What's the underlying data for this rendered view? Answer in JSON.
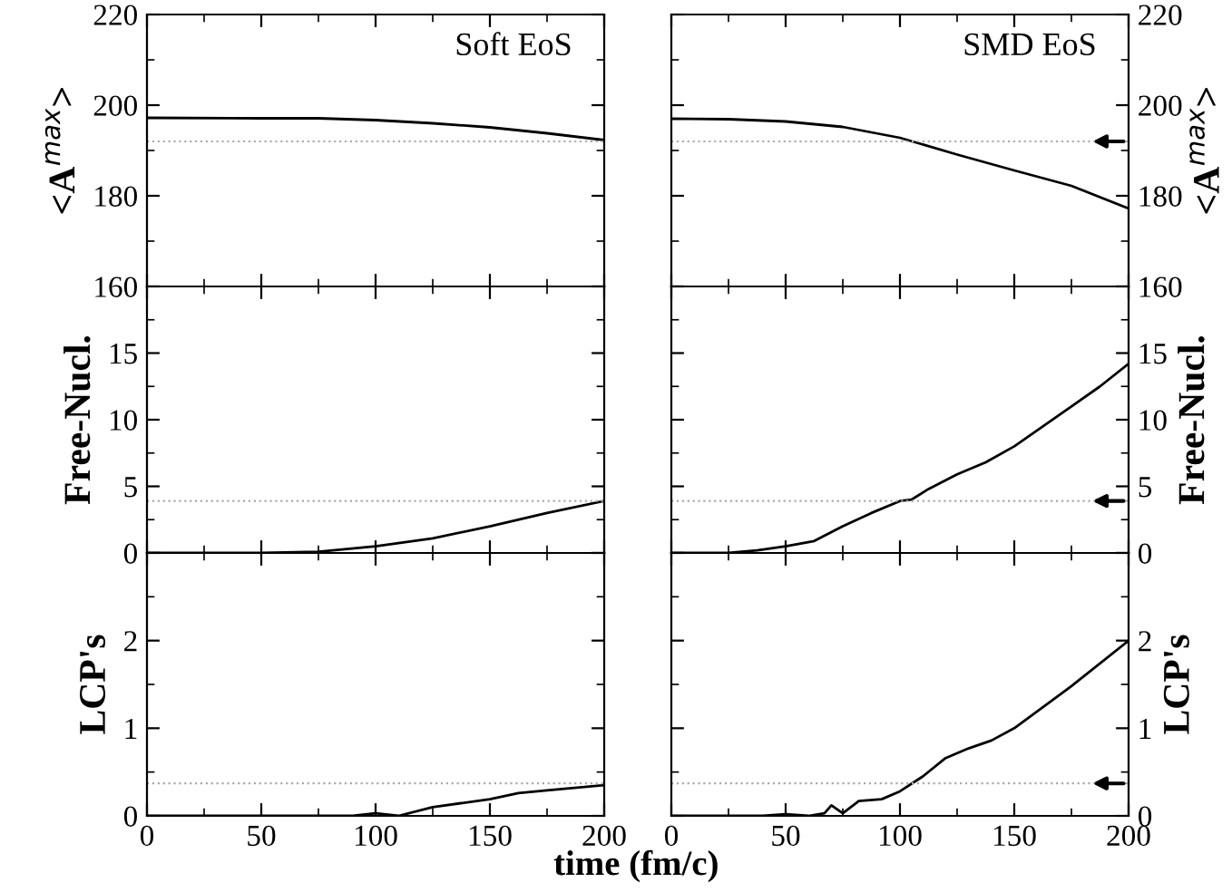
{
  "chart_data": [
    {
      "type": "line",
      "ylabel": "<A$^{max}$>",
      "annotations": [
        "Soft EoS"
      ],
      "x": [
        0,
        50,
        75,
        100,
        125,
        150,
        175,
        200
      ],
      "series": [
        {
          "color": "#000000",
          "values": [
            197.2,
            197.1,
            197.1,
            196.7,
            196.0,
            195.1,
            193.8,
            192.3
          ]
        }
      ],
      "xlim": [
        0,
        200
      ],
      "xticks": [
        0,
        50,
        100,
        150,
        200
      ],
      "ylim": [
        160,
        220
      ],
      "yticks": [
        160,
        180,
        200,
        220
      ],
      "ref_lines": [
        {
          "axis": "y",
          "value": 192,
          "color": "#aaaaaa",
          "line_style": "dotted"
        }
      ],
      "tick_labels": "y",
      "grid": false,
      "legend": false
    },
    {
      "type": "line",
      "y2label": "<A$^{max}$>",
      "annotations": [
        "SMD EoS"
      ],
      "x": [
        0,
        25,
        50,
        75,
        100,
        125,
        150,
        175,
        200
      ],
      "series": [
        {
          "color": "#000000",
          "axis": "y2",
          "values": [
            197.0,
            196.9,
            196.4,
            195.2,
            192.8,
            189.1,
            185.6,
            182.2,
            177.2
          ]
        }
      ],
      "xlim": [
        0,
        200
      ],
      "xticks": [
        0,
        50,
        100,
        150,
        200
      ],
      "y2lim": [
        160,
        220
      ],
      "y2ticks": [
        160,
        180,
        200,
        220
      ],
      "ref_lines": [
        {
          "axis": "y2",
          "value": 192,
          "color": "#aaaaaa",
          "line_style": "dotted"
        }
      ],
      "tick_labels": "y",
      "grid": false,
      "legend": false
    },
    {
      "type": "line",
      "ylabel": "Free-Nucl.",
      "x": [
        0,
        50,
        75,
        100,
        125,
        150,
        175,
        200
      ],
      "series": [
        {
          "color": "#000000",
          "values": [
            0,
            0,
            0.1,
            0.5,
            1.1,
            2.0,
            3.0,
            3.9
          ]
        }
      ],
      "xlim": [
        0,
        200
      ],
      "xticks": [
        0,
        50,
        100,
        150,
        200
      ],
      "ylim": [
        0,
        20
      ],
      "yticks": [
        0,
        5,
        10,
        15,
        {
          "value": 20,
          "label": null
        }
      ],
      "ref_lines": [
        {
          "axis": "y",
          "value": 3.9,
          "color": "#aaaaaa",
          "line_style": "dotted"
        }
      ],
      "tick_labels": "y",
      "grid": false,
      "legend": false
    },
    {
      "type": "line",
      "y2label": "Free-Nucl.",
      "x": [
        0,
        25,
        37.5,
        50,
        62.5,
        75,
        87.5,
        100,
        105,
        112.5,
        125,
        137.5,
        150,
        162.5,
        175,
        187.5,
        200
      ],
      "series": [
        {
          "color": "#000000",
          "axis": "y2",
          "values": [
            0,
            0,
            0.2,
            0.5,
            0.9,
            2.0,
            3.0,
            3.9,
            4.0,
            4.8,
            5.9,
            6.8,
            8.0,
            9.5,
            11.0,
            12.5,
            14.2
          ]
        }
      ],
      "xlim": [
        0,
        200
      ],
      "xticks": [
        0,
        50,
        100,
        150,
        200
      ],
      "y2lim": [
        0,
        20
      ],
      "y2ticks": [
        0,
        5,
        10,
        15,
        {
          "value": 20,
          "label": null
        }
      ],
      "ref_lines": [
        {
          "axis": "y2",
          "value": 3.9,
          "color": "#aaaaaa",
          "line_style": "dotted"
        }
      ],
      "tick_labels": "y",
      "grid": false,
      "legend": false
    },
    {
      "type": "line",
      "ylabel": "LCP's",
      "xlabel": "time (fm/c)",
      "x": [
        0,
        50,
        90,
        100,
        110,
        125,
        150,
        162.5,
        175,
        200
      ],
      "series": [
        {
          "color": "#000000",
          "values": [
            0,
            0,
            0,
            0.03,
            0,
            0.1,
            0.19,
            0.26,
            0.29,
            0.35
          ]
        }
      ],
      "xlim": [
        0,
        200
      ],
      "xticks": [
        0,
        50,
        100,
        150,
        200
      ],
      "ylim": [
        0,
        3
      ],
      "yticks": [
        0,
        1,
        2,
        {
          "value": 3,
          "label": null
        }
      ],
      "ref_lines": [
        {
          "axis": "y",
          "value": 0.37,
          "color": "#aaaaaa",
          "line_style": "dotted"
        }
      ],
      "grid": false,
      "legend": false
    },
    {
      "type": "line",
      "y2label": "LCP's",
      "x": [
        0,
        40,
        50,
        60,
        67,
        70,
        75,
        82,
        92,
        100,
        110,
        120,
        130,
        140,
        150,
        175,
        200
      ],
      "series": [
        {
          "color": "#000000",
          "axis": "y2",
          "values": [
            0,
            0,
            0.02,
            0,
            0.03,
            0.12,
            0.03,
            0.17,
            0.19,
            0.28,
            0.45,
            0.66,
            0.77,
            0.86,
            1.0,
            1.48,
            2.0
          ]
        }
      ],
      "xlim": [
        0,
        200
      ],
      "xticks": [
        0,
        50,
        100,
        150,
        200
      ],
      "y2lim": [
        0,
        3
      ],
      "y2ticks": [
        0,
        1,
        2,
        {
          "value": 3,
          "label": null
        }
      ],
      "ref_lines": [
        {
          "axis": "y2",
          "value": 0.37,
          "color": "#aaaaaa",
          "line_style": "dotted"
        }
      ],
      "grid": false,
      "legend": false
    }
  ]
}
